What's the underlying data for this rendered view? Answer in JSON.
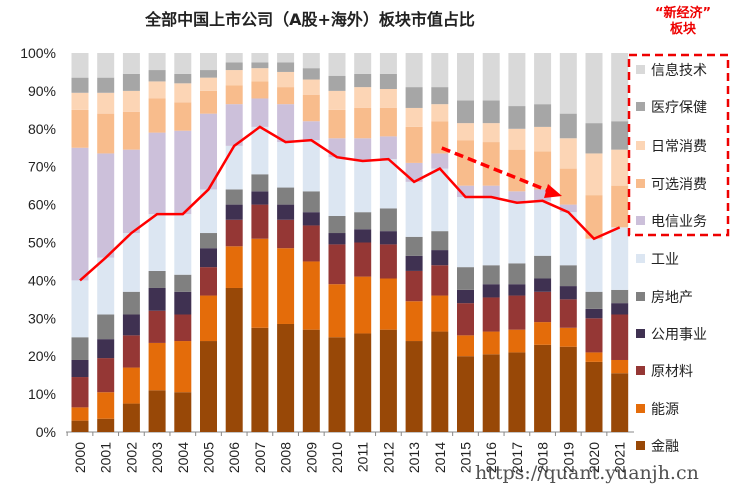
{
  "chart_data": {
    "type": "bar",
    "stacked": true,
    "title": "全部中国上市公司（A股+海外）板块市值占比",
    "annotation": "“新经济”板块",
    "annotation_lines": [
      "“新经济”",
      "板块"
    ],
    "watermark": "https://quant.yuanjh.cn",
    "ylim": [
      0,
      100
    ],
    "yticks": [
      "0%",
      "10%",
      "20%",
      "30%",
      "40%",
      "50%",
      "60%",
      "70%",
      "80%",
      "90%",
      "100%"
    ],
    "categories": [
      "2000",
      "2001",
      "2002",
      "2003",
      "2004",
      "2005",
      "2006",
      "2007",
      "2008",
      "2009",
      "2010",
      "2011",
      "2012",
      "2013",
      "2014",
      "2015",
      "2016",
      "2017",
      "2018",
      "2019",
      "2020",
      "2021"
    ],
    "legend_placement": "right",
    "series": [
      {
        "name": "金融",
        "color": "#984807",
        "values": [
          3,
          3.5,
          7.5,
          11,
          10.5,
          24,
          38,
          27.5,
          28.5,
          27,
          25,
          26,
          27,
          24,
          26.5,
          20,
          20.5,
          21,
          23,
          22.5,
          18.5,
          15.5
        ]
      },
      {
        "name": "能源",
        "color": "#e46c0a",
        "values": [
          3.5,
          7,
          9.5,
          12.5,
          13.5,
          12,
          11,
          23.5,
          20,
          18,
          14,
          15,
          13.5,
          10.5,
          9.5,
          5.5,
          6,
          6,
          6,
          5,
          2.5,
          3.5
        ]
      },
      {
        "name": "原材料",
        "color": "#953735",
        "values": [
          8,
          9,
          8.5,
          8.5,
          7,
          7.5,
          7,
          9,
          7.5,
          9.5,
          10.5,
          9,
          9,
          8,
          8,
          8.5,
          9,
          9,
          8,
          7.5,
          9,
          12
        ]
      },
      {
        "name": "公用事业",
        "color": "#3f3151",
        "values": [
          4.5,
          5,
          5.5,
          6,
          6,
          5,
          4,
          3.5,
          4,
          3.5,
          3,
          3.5,
          3.5,
          4,
          4,
          3.5,
          3.5,
          3,
          3.5,
          3.5,
          2.5,
          3
        ]
      },
      {
        "name": "房地产",
        "color": "#808080",
        "values": [
          6,
          6.5,
          6,
          4.5,
          4.5,
          4,
          4,
          4.5,
          4.5,
          5.5,
          4.5,
          4.5,
          6,
          5,
          5,
          6,
          5,
          5.5,
          6,
          5.5,
          4.5,
          3.5
        ]
      },
      {
        "name": "工业",
        "color": "#dce6f2",
        "values": [
          15,
          15,
          15.5,
          15,
          16,
          11.5,
          11.5,
          12.5,
          12,
          13.5,
          15.5,
          13.5,
          13,
          14.5,
          16.5,
          18.5,
          18,
          16,
          14.5,
          14,
          14,
          16.5
        ]
      },
      {
        "name": "电信业务",
        "color": "#ccc0da",
        "values": [
          35,
          27.5,
          22,
          21.5,
          22,
          20,
          11,
          7.5,
          10,
          5,
          5,
          6,
          6,
          5,
          4,
          3,
          3,
          3,
          3,
          2,
          0,
          0
        ]
      },
      {
        "name": "可选消费",
        "color": "#f8bc8c",
        "values": [
          10,
          10.5,
          10,
          9,
          7.5,
          6,
          5,
          4.5,
          4.5,
          7,
          7.5,
          8,
          7.5,
          9.5,
          8.5,
          12,
          11.5,
          11,
          10,
          9.5,
          11.5,
          11
        ]
      },
      {
        "name": "日常消费",
        "color": "#fcd5b5",
        "values": [
          4.5,
          5.5,
          5.5,
          4.5,
          5,
          3.5,
          4,
          3.5,
          4,
          4,
          5,
          5.5,
          5,
          5,
          4.5,
          4.5,
          5,
          5.5,
          6.5,
          8,
          11,
          9.5
        ]
      },
      {
        "name": "医疗保健",
        "color": "#a6a6a6",
        "values": [
          4,
          4,
          4.5,
          3,
          2.5,
          2,
          2,
          1.5,
          2.5,
          3,
          4,
          3.5,
          4,
          5.5,
          4.5,
          6,
          6,
          6,
          6,
          6.5,
          8,
          7.5
        ]
      },
      {
        "name": "信息技术",
        "color": "#d9d9d9",
        "values": [
          6.5,
          6.5,
          5.5,
          4.5,
          5.5,
          4.5,
          2.5,
          2.5,
          2.5,
          4,
          6,
          5.5,
          5.5,
          9,
          9,
          12.5,
          12.5,
          14,
          13.5,
          16,
          18.5,
          18
        ]
      }
    ],
    "line": {
      "color": "#ff0000",
      "values": [
        40,
        46,
        52.5,
        57.5,
        57.5,
        64,
        75.5,
        80.5,
        76.5,
        77,
        72.5,
        71.5,
        72,
        66,
        69.5,
        62,
        62,
        60.5,
        61,
        58,
        51,
        54
      ]
    },
    "new_economy_series": [
      "信息技术",
      "医疗保健",
      "日常消费",
      "可选消费",
      "电信业务"
    ],
    "trend_arrow": {
      "from": "2014",
      "to": "2020",
      "color": "#ff0000",
      "style": "dashed"
    }
  }
}
